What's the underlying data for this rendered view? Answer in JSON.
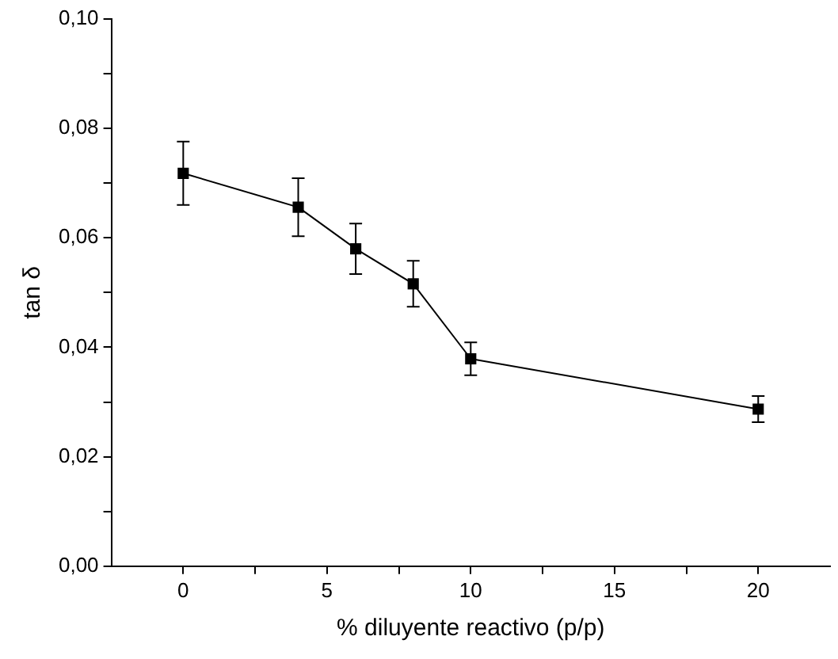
{
  "chart_data": {
    "type": "line",
    "xlabel": "% diluyente reactivo (p/p)",
    "ylabel": "tan δ",
    "x": [
      0,
      4,
      6,
      8,
      10,
      20
    ],
    "values": [
      0.0718,
      0.0656,
      0.058,
      0.0516,
      0.0379,
      0.0287
    ],
    "errors": [
      0.0058,
      0.0053,
      0.0046,
      0.0042,
      0.003,
      0.0024
    ],
    "color": "#000000",
    "marker": "square",
    "line_style": "solid",
    "xlim": [
      -2.5,
      22.5
    ],
    "xticks": [
      0,
      {
        "value": 2.5,
        "label": null
      },
      5,
      {
        "value": 7.5,
        "label": null
      },
      10,
      {
        "value": 12.5,
        "label": null
      },
      15,
      {
        "value": 17.5,
        "label": null
      },
      20
    ],
    "ylim": [
      0,
      0.1
    ],
    "yticks": [
      {
        "value": 0,
        "label": "0,00"
      },
      {
        "value": 0.01,
        "label": null
      },
      {
        "value": 0.02,
        "label": "0,02"
      },
      {
        "value": 0.03,
        "label": null
      },
      {
        "value": 0.04,
        "label": "0,04"
      },
      {
        "value": 0.05,
        "label": null
      },
      {
        "value": 0.06,
        "label": "0,06"
      },
      {
        "value": 0.07,
        "label": null
      },
      {
        "value": 0.08,
        "label": "0,08"
      },
      {
        "value": 0.09,
        "label": null
      },
      {
        "value": 0.1,
        "label": "0,10"
      }
    ],
    "grid": false,
    "legend": false
  }
}
